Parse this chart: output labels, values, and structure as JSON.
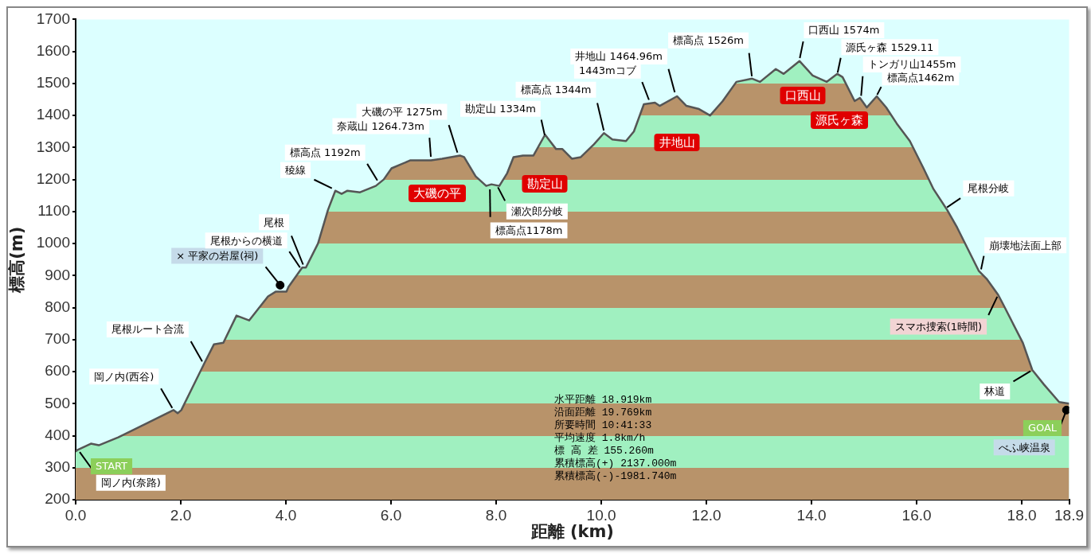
{
  "chart_data": {
    "type": "area",
    "xlabel": "距離 (km)",
    "ylabel": "標高(m)",
    "xlim": [
      0,
      18.9
    ],
    "ylim": [
      200,
      1700
    ],
    "xticks": [
      {
        "value": 0,
        "label": "0.0"
      },
      {
        "value": 2,
        "label": "2.0"
      },
      {
        "value": 4,
        "label": "4.0"
      },
      {
        "value": 6,
        "label": "6.0"
      },
      {
        "value": 8,
        "label": "8.0"
      },
      {
        "value": 10,
        "label": "10.0"
      },
      {
        "value": 12,
        "label": "12.0"
      },
      {
        "value": 14,
        "label": "14.0"
      },
      {
        "value": 16,
        "label": "16.0"
      },
      {
        "value": 18,
        "label": "18.0"
      },
      {
        "value": 18.9,
        "label": "18.9"
      }
    ],
    "yticks": [
      200,
      300,
      400,
      500,
      600,
      700,
      800,
      900,
      1000,
      1100,
      1200,
      1300,
      1400,
      1500,
      1600,
      1700
    ],
    "grid": false,
    "legend": false,
    "series": [
      {
        "type": "area",
        "color": "#555555",
        "marker": "none",
        "x": [
          0,
          0.03,
          0.29,
          0.44,
          0.81,
          1.31,
          1.86,
          1.94,
          2.01,
          2.16,
          2.46,
          2.63,
          2.81,
          3.06,
          3.3,
          3.66,
          3.81,
          4.01,
          4.05,
          4.31,
          4.38,
          4.61,
          4.8,
          4.94,
          5.06,
          5.17,
          5.41,
          5.71,
          5.86,
          6.01,
          6.37,
          6.76,
          6.97,
          7.31,
          7.39,
          7.61,
          7.81,
          7.91,
          8.06,
          8.21,
          8.33,
          8.51,
          8.71,
          8.93,
          9.14,
          9.26,
          9.44,
          9.61,
          9.86,
          10.05,
          10.21,
          10.47,
          10.62,
          10.81,
          11.02,
          11.11,
          11.44,
          11.62,
          11.86,
          12.07,
          12.31,
          12.57,
          12.87,
          13.02,
          13.32,
          13.47,
          13.77,
          14.02,
          14.29,
          14.49,
          14.59,
          14.82,
          14.92,
          15.05,
          15.24,
          15.42,
          15.62,
          15.87,
          16.13,
          16.32,
          16.58,
          16.77,
          17.18,
          17.33,
          17.55,
          17.63,
          18.02,
          18.2,
          18.42,
          18.71,
          18.9
        ],
        "values": [
          350,
          355,
          375,
          370,
          395,
          435,
          480,
          470,
          480,
          530,
          630,
          685,
          690,
          775,
          760,
          835,
          850,
          850,
          865,
          925,
          925,
          1000,
          1105,
          1165,
          1155,
          1165,
          1160,
          1180,
          1200,
          1235,
          1260,
          1260,
          1265,
          1275,
          1270,
          1210,
          1180,
          1185,
          1180,
          1220,
          1270,
          1275,
          1275,
          1340,
          1295,
          1295,
          1265,
          1270,
          1310,
          1345,
          1325,
          1320,
          1350,
          1435,
          1440,
          1430,
          1460,
          1430,
          1420,
          1400,
          1445,
          1505,
          1515,
          1505,
          1545,
          1530,
          1570,
          1525,
          1505,
          1530,
          1520,
          1445,
          1455,
          1425,
          1460,
          1425,
          1375,
          1320,
          1235,
          1170,
          1105,
          1050,
          915,
          890,
          840,
          815,
          690,
          605,
          560,
          505,
          500
        ]
      },
      {
        "type": "scatter",
        "color": "#000000",
        "marker": "circle",
        "x": [
          3.89,
          18.85
        ],
        "values": [
          870,
          480
        ]
      }
    ],
    "annotations": [
      {
        "text": "岡ノ内(奈路)",
        "x": 0.05,
        "y": 355
      },
      {
        "text": "岡ノ内(西谷)",
        "x": 1.86,
        "y": 480
      },
      {
        "text": "尾根ルート合流",
        "x": 2.43,
        "y": 625
      },
      {
        "text": "× 平家の岩屋(祠)",
        "x": 3.89,
        "y": 870
      },
      {
        "text": "尾根からの横道",
        "x": 4.29,
        "y": 920
      },
      {
        "text": "尾根",
        "x": 4.35,
        "y": 925
      },
      {
        "text": "稜線",
        "x": 4.91,
        "y": 1170
      },
      {
        "text": "標高点 1192m",
        "x": 5.76,
        "y": 1192
      },
      {
        "text": "奈蔵山 1264.73m",
        "x": 6.76,
        "y": 1265
      },
      {
        "text": "大磯の平 1275m",
        "x": 7.28,
        "y": 1275
      },
      {
        "text": "勘定山 1334m",
        "x": 8.93,
        "y": 1334
      },
      {
        "text": "瀬次郎分岐",
        "x": 8.02,
        "y": 1180
      },
      {
        "text": "標高点1178m",
        "x": 7.88,
        "y": 1178
      },
      {
        "text": "標高点 1344m",
        "x": 10.06,
        "y": 1344
      },
      {
        "text": "1443mコブ",
        "x": 10.92,
        "y": 1443
      },
      {
        "text": "井地山 1464.96m",
        "x": 11.41,
        "y": 1465
      },
      {
        "text": "標高点 1526m",
        "x": 12.87,
        "y": 1515
      },
      {
        "text": "口西山 1574m",
        "x": 13.77,
        "y": 1574
      },
      {
        "text": "源氏ヶ森 1529.11",
        "x": 14.49,
        "y": 1529
      },
      {
        "text": "トンガリ山1455m",
        "x": 14.94,
        "y": 1455
      },
      {
        "text": "標高点1462m",
        "x": 15.24,
        "y": 1462
      },
      {
        "text": "尾根分岐",
        "x": 16.55,
        "y": 1110
      },
      {
        "text": "崩壊地法面上部",
        "x": 17.22,
        "y": 915
      },
      {
        "text": "スマホ捜索(1時間)",
        "x": 17.55,
        "y": 840
      },
      {
        "text": "林道",
        "x": 18.2,
        "y": 605
      },
      {
        "text": "べふ峡温泉",
        "x": 18.85,
        "y": 480
      },
      "大磯の平",
      "勘定山",
      "井地山",
      "口西山",
      "源氏ヶ森",
      "START",
      "GOAL",
      "水平距離 18.919km",
      "沿面距離 19.769km",
      "所要時間 10:41:33",
      "平均速度 1.8km/h",
      "標 高 差 155.260m",
      "累積標高(+) 2137.000m",
      "累積標高(-)-1981.740m"
    ]
  }
}
